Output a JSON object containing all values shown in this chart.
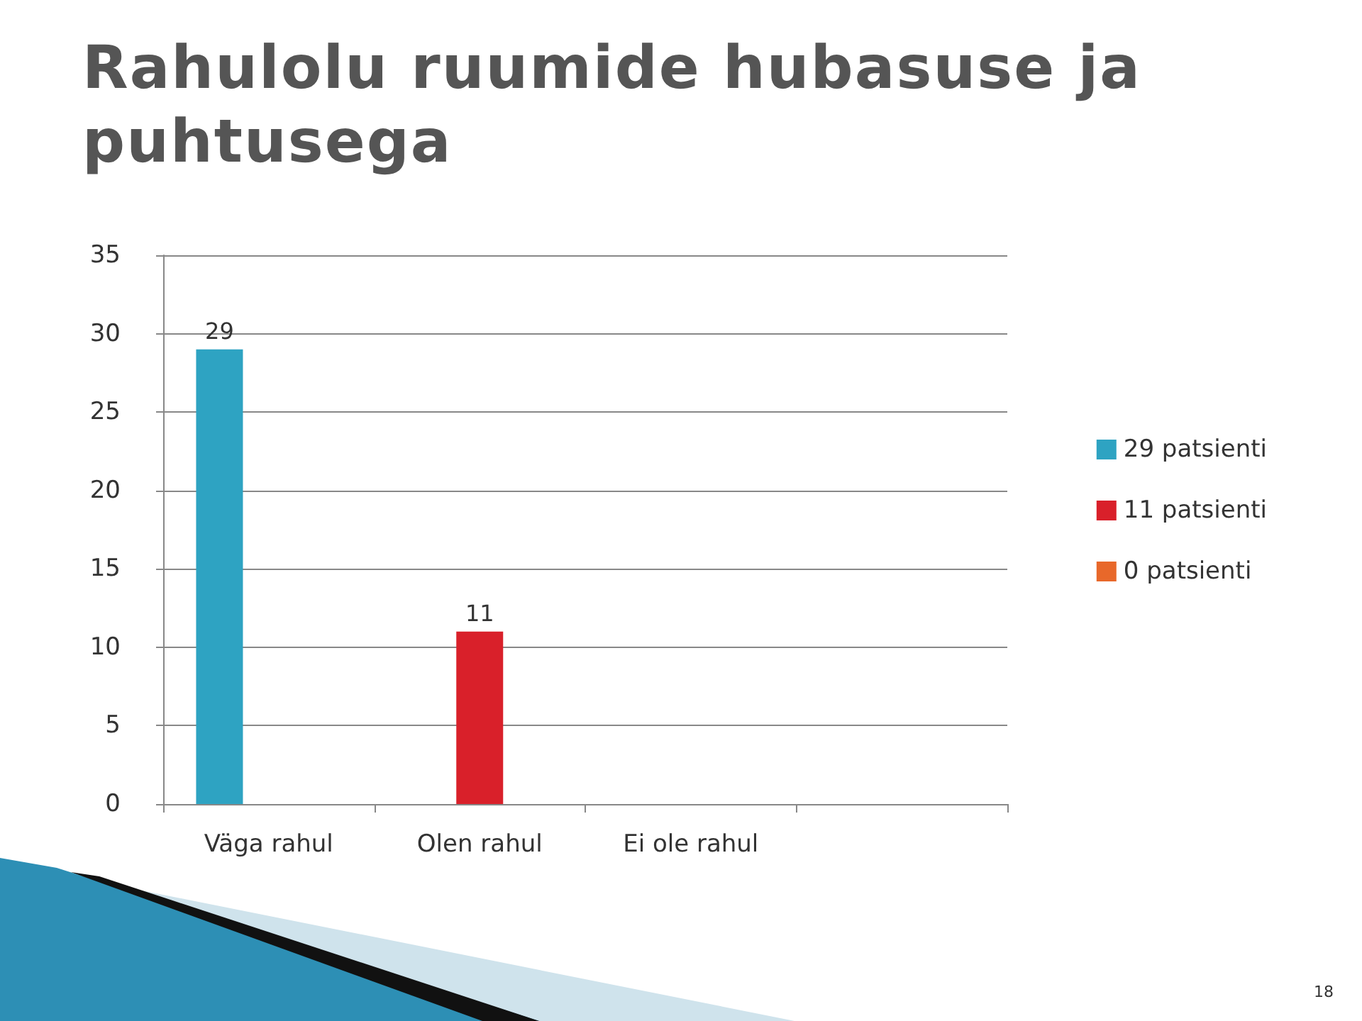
{
  "chart_data": {
    "type": "bar",
    "title": "Rahulolu ruumide hubasuse ja puhtusega",
    "categories": [
      "Väga rahul",
      "Olen rahul",
      "Ei ole rahul",
      null
    ],
    "series": [
      {
        "name": "29 patsienti",
        "color": "#2ea3c2",
        "values": [
          29,
          null,
          null,
          null
        ],
        "value_labels": [
          "29",
          null,
          null,
          null
        ]
      },
      {
        "name": "11 patsienti",
        "color": "#d9202a",
        "values": [
          null,
          11,
          null,
          null
        ],
        "value_labels": [
          null,
          "11",
          null,
          null
        ]
      },
      {
        "name": "0 patsienti",
        "color": "#e8682a",
        "values": [
          null,
          null,
          0,
          null
        ],
        "value_labels": [
          null,
          null,
          null,
          null
        ]
      }
    ],
    "ylim": [
      0,
      35
    ],
    "yticks": [
      0,
      5,
      10,
      15,
      20,
      25,
      30,
      35
    ],
    "grid": "y",
    "legend": "right",
    "annotations": [
      "18"
    ]
  }
}
